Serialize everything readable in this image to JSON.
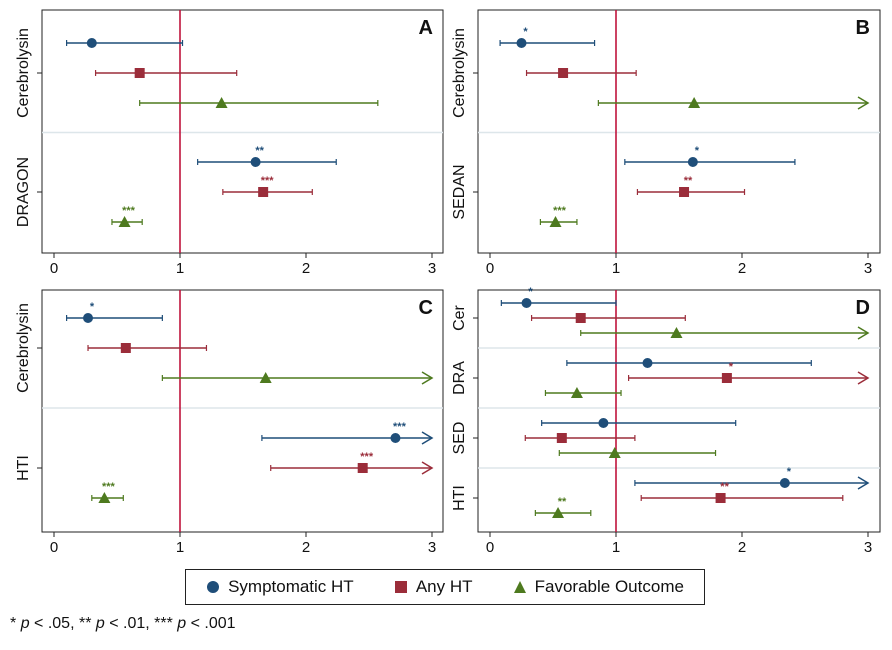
{
  "colors": {
    "symptomatic": "#1f4e79",
    "any_ht": "#9b2d3a",
    "favorable": "#4e7a1f",
    "refline": "#c0143c",
    "frame": "#222222",
    "band_sep": "#dde6ea"
  },
  "legend": [
    {
      "key": "symptomatic",
      "label": "Symptomatic HT",
      "shape": "circle"
    },
    {
      "key": "any_ht",
      "label": "Any HT",
      "shape": "square"
    },
    {
      "key": "favorable",
      "label": "Favorable Outcome",
      "shape": "triangle"
    }
  ],
  "footnote": {
    "p1_stars": "*",
    "p1_val": " < .05, ",
    "p2_stars": "** ",
    "p2_val": " < .01, ",
    "p3_stars": "*** ",
    "p3_val": " < .001",
    "p_symbol": "p"
  },
  "chart_data": [
    {
      "type": "forest",
      "panel": "A",
      "xlim": [
        0,
        3
      ],
      "xticks": [
        0,
        1,
        2,
        3
      ],
      "reference_x": 1,
      "groups": [
        {
          "label": "Cerebrolysin",
          "rows": [
            {
              "series": "symptomatic",
              "est": 0.3,
              "lo": 0.1,
              "hi": 1.02,
              "sig": "",
              "arrow": false
            },
            {
              "series": "any_ht",
              "est": 0.68,
              "lo": 0.33,
              "hi": 1.45,
              "sig": "",
              "arrow": false
            },
            {
              "series": "favorable",
              "est": 1.33,
              "lo": 0.68,
              "hi": 2.57,
              "sig": "",
              "arrow": false
            }
          ]
        },
        {
          "label": "DRAGON",
          "rows": [
            {
              "series": "symptomatic",
              "est": 1.6,
              "lo": 1.14,
              "hi": 2.24,
              "sig": "**",
              "arrow": false
            },
            {
              "series": "any_ht",
              "est": 1.66,
              "lo": 1.34,
              "hi": 2.05,
              "sig": "***",
              "arrow": false
            },
            {
              "series": "favorable",
              "est": 0.56,
              "lo": 0.46,
              "hi": 0.7,
              "sig": "***",
              "arrow": false
            }
          ]
        }
      ]
    },
    {
      "type": "forest",
      "panel": "B",
      "xlim": [
        0,
        3
      ],
      "xticks": [
        0,
        1,
        2,
        3
      ],
      "reference_x": 1,
      "groups": [
        {
          "label": "Cerebrolysin",
          "rows": [
            {
              "series": "symptomatic",
              "est": 0.25,
              "lo": 0.08,
              "hi": 0.83,
              "sig": "*",
              "arrow": false
            },
            {
              "series": "any_ht",
              "est": 0.58,
              "lo": 0.29,
              "hi": 1.16,
              "sig": "",
              "arrow": false
            },
            {
              "series": "favorable",
              "est": 1.62,
              "lo": 0.86,
              "hi": 3.0,
              "sig": "",
              "arrow": true
            }
          ]
        },
        {
          "label": "SEDAN",
          "rows": [
            {
              "series": "symptomatic",
              "est": 1.61,
              "lo": 1.07,
              "hi": 2.42,
              "sig": "*",
              "arrow": false
            },
            {
              "series": "any_ht",
              "est": 1.54,
              "lo": 1.17,
              "hi": 2.02,
              "sig": "**",
              "arrow": false
            },
            {
              "series": "favorable",
              "est": 0.52,
              "lo": 0.4,
              "hi": 0.69,
              "sig": "***",
              "arrow": false
            }
          ]
        }
      ]
    },
    {
      "type": "forest",
      "panel": "C",
      "xlim": [
        0,
        3
      ],
      "xticks": [
        0,
        1,
        2,
        3
      ],
      "reference_x": 1,
      "groups": [
        {
          "label": "Cerebrolysin",
          "rows": [
            {
              "series": "symptomatic",
              "est": 0.27,
              "lo": 0.1,
              "hi": 0.86,
              "sig": "*",
              "arrow": false
            },
            {
              "series": "any_ht",
              "est": 0.57,
              "lo": 0.27,
              "hi": 1.21,
              "sig": "",
              "arrow": false
            },
            {
              "series": "favorable",
              "est": 1.68,
              "lo": 0.86,
              "hi": 3.0,
              "sig": "",
              "arrow": true
            }
          ]
        },
        {
          "label": "HTI",
          "rows": [
            {
              "series": "symptomatic",
              "est": 2.71,
              "lo": 1.65,
              "hi": 3.0,
              "sig": "***",
              "arrow": true
            },
            {
              "series": "any_ht",
              "est": 2.45,
              "lo": 1.72,
              "hi": 3.0,
              "sig": "***",
              "arrow": true
            },
            {
              "series": "favorable",
              "est": 0.4,
              "lo": 0.3,
              "hi": 0.55,
              "sig": "***",
              "arrow": false
            }
          ]
        }
      ]
    },
    {
      "type": "forest",
      "panel": "D",
      "xlim": [
        0,
        3
      ],
      "xticks": [
        0,
        1,
        2,
        3
      ],
      "reference_x": 1,
      "groups": [
        {
          "label": "Cer",
          "rows": [
            {
              "series": "symptomatic",
              "est": 0.29,
              "lo": 0.09,
              "hi": 1.0,
              "sig": "*",
              "arrow": false
            },
            {
              "series": "any_ht",
              "est": 0.72,
              "lo": 0.33,
              "hi": 1.55,
              "sig": "",
              "arrow": false
            },
            {
              "series": "favorable",
              "est": 1.48,
              "lo": 0.72,
              "hi": 3.0,
              "sig": "",
              "arrow": true
            }
          ]
        },
        {
          "label": "DRA",
          "rows": [
            {
              "series": "symptomatic",
              "est": 1.25,
              "lo": 0.61,
              "hi": 2.55,
              "sig": "",
              "arrow": false
            },
            {
              "series": "any_ht",
              "est": 1.88,
              "lo": 1.1,
              "hi": 3.0,
              "sig": "*",
              "arrow": true
            },
            {
              "series": "favorable",
              "est": 0.69,
              "lo": 0.44,
              "hi": 1.04,
              "sig": "",
              "arrow": false
            }
          ]
        },
        {
          "label": "SED",
          "rows": [
            {
              "series": "symptomatic",
              "est": 0.9,
              "lo": 0.41,
              "hi": 1.95,
              "sig": "",
              "arrow": false
            },
            {
              "series": "any_ht",
              "est": 0.57,
              "lo": 0.28,
              "hi": 1.15,
              "sig": "",
              "arrow": false
            },
            {
              "series": "favorable",
              "est": 0.99,
              "lo": 0.55,
              "hi": 1.79,
              "sig": "",
              "arrow": false
            }
          ]
        },
        {
          "label": "HTI",
          "rows": [
            {
              "series": "symptomatic",
              "est": 2.34,
              "lo": 1.15,
              "hi": 3.0,
              "sig": "*",
              "arrow": true
            },
            {
              "series": "any_ht",
              "est": 1.83,
              "lo": 1.2,
              "hi": 2.8,
              "sig": "**",
              "arrow": false
            },
            {
              "series": "favorable",
              "est": 0.54,
              "lo": 0.36,
              "hi": 0.8,
              "sig": "**",
              "arrow": false
            }
          ]
        }
      ]
    }
  ]
}
